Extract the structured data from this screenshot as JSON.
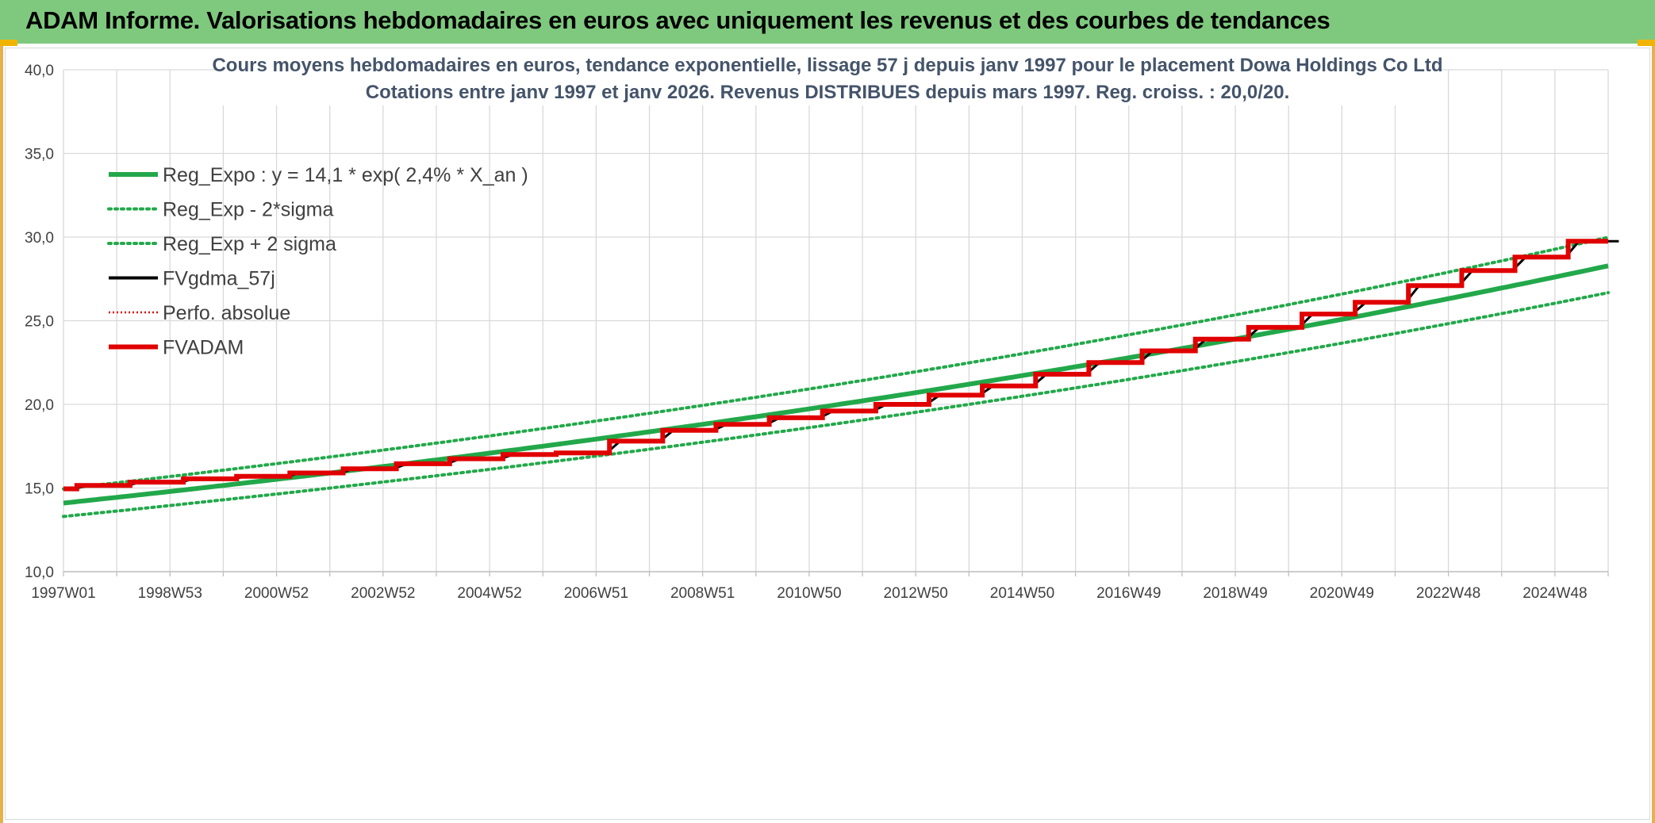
{
  "header": {
    "title": "ADAM Informe. Valorisations hebdomadaires en euros avec uniquement les revenus et des courbes de tendances"
  },
  "chart_data": {
    "type": "line",
    "title_line1": "Cours moyens hebdomadaires en euros, tendance exponentielle, lissage 57 j depuis janv 1997 pour le placement Dowa Holdings Co Ltd",
    "title_line2": "Cotations entre janv 1997 et janv 2026. Revenus DISTRIBUES depuis mars 1997. Reg. croiss. : 20,0/20.",
    "xlabel": "",
    "ylabel": "",
    "x_range": [
      1997.0,
      2026.0
    ],
    "ylim": [
      10,
      40
    ],
    "y_ticks": [
      "10,0",
      "15,0",
      "20,0",
      "25,0",
      "30,0",
      "35,0",
      "40,0"
    ],
    "y_tick_values": [
      10,
      15,
      20,
      25,
      30,
      35,
      40
    ],
    "x_tick_labels": [
      "1997W01",
      "1998W53",
      "2000W52",
      "2002W52",
      "2004W52",
      "2006W51",
      "2008W51",
      "2010W50",
      "2012W50",
      "2014W50",
      "2016W49",
      "2018W49",
      "2020W49",
      "2022W48",
      "2024W48"
    ],
    "x_tick_positions": [
      1997.0,
      1999.0,
      2001.0,
      2003.0,
      2005.0,
      2007.0,
      2009.0,
      2011.0,
      2013.0,
      2015.0,
      2017.0,
      2019.0,
      2021.0,
      2023.0,
      2025.0
    ],
    "grid": true,
    "legend_position": "top-left",
    "series": [
      {
        "name": "Reg_Expo : y = 14,1 * exp( 2,4% *  X_an )",
        "style": "solid-thick",
        "color": "#22a84a",
        "model": {
          "a": 14.1,
          "rate": 0.024
        }
      },
      {
        "name": "Reg_Exp - 2*sigma",
        "style": "dotted",
        "color": "#22a84a",
        "model": {
          "a": 13.3,
          "rate": 0.024
        }
      },
      {
        "name": "Reg_Exp + 2 sigma",
        "style": "dotted",
        "color": "#22a84a",
        "model": {
          "a": 14.95,
          "rate": 0.024
        }
      },
      {
        "name": "FVgdma_57j",
        "style": "solid",
        "color": "#000000"
      },
      {
        "name": "Perfo. absolue",
        "style": "dotted",
        "color": "#e00000"
      },
      {
        "name": "FVADAM",
        "style": "solid-thick",
        "color": "#e00000",
        "x": [
          1997.0,
          1997.25,
          1998.25,
          1999.25,
          2000.25,
          2001.25,
          2002.25,
          2003.25,
          2004.25,
          2005.25,
          2006.25,
          2007.25,
          2008.25,
          2009.25,
          2010.25,
          2011.25,
          2012.25,
          2013.25,
          2014.25,
          2015.25,
          2016.25,
          2017.25,
          2018.25,
          2019.25,
          2020.25,
          2021.25,
          2022.25,
          2023.25,
          2024.25,
          2025.25,
          2026.0
        ],
        "y": [
          14.95,
          15.15,
          15.35,
          15.55,
          15.7,
          15.9,
          16.15,
          16.45,
          16.75,
          17.0,
          17.1,
          17.8,
          18.45,
          18.8,
          19.2,
          19.6,
          20.0,
          20.55,
          21.1,
          21.8,
          22.5,
          23.2,
          23.9,
          24.6,
          25.4,
          26.1,
          27.1,
          28.0,
          28.8,
          29.75,
          29.75
        ]
      }
    ]
  }
}
